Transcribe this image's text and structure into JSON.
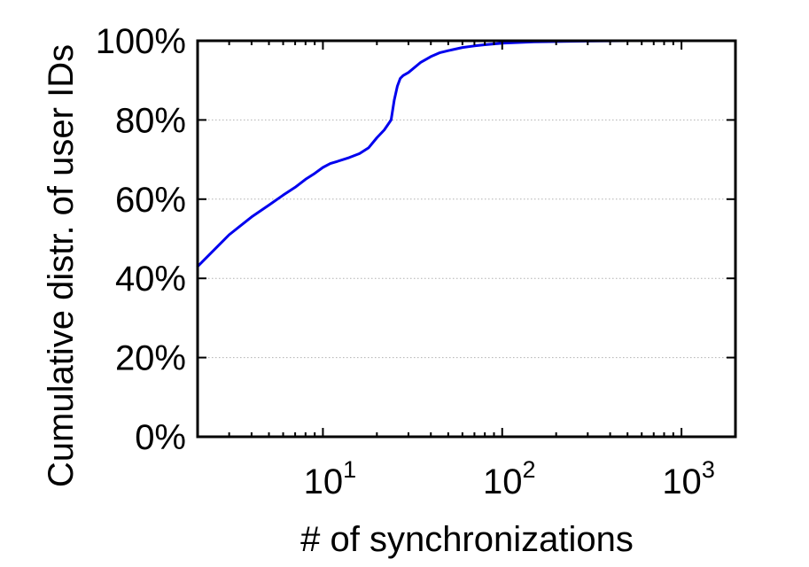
{
  "chart_data": {
    "type": "line",
    "title": "",
    "xlabel": "# of synchronizations",
    "ylabel": "Cumulative distr. of user IDs",
    "xscale": "log10",
    "xlim": [
      2,
      2000
    ],
    "ylim": [
      0,
      100
    ],
    "grid": {
      "y": true,
      "x": false,
      "style": "dotted"
    },
    "legend": "none",
    "x_ticks": [
      {
        "value": 10,
        "base": "10",
        "exp": "1"
      },
      {
        "value": 100,
        "base": "10",
        "exp": "2"
      },
      {
        "value": 1000,
        "base": "10",
        "exp": "3"
      }
    ],
    "y_ticks": [
      {
        "value": 0,
        "label": "0%"
      },
      {
        "value": 20,
        "label": "20%"
      },
      {
        "value": 40,
        "label": "40%"
      },
      {
        "value": 60,
        "label": "60%"
      },
      {
        "value": 80,
        "label": "80%"
      },
      {
        "value": 100,
        "label": "100%"
      }
    ],
    "series": [
      {
        "color": "#0000ee",
        "x": [
          2,
          3,
          4,
          5,
          6,
          7,
          8,
          9,
          10,
          11,
          12,
          14,
          16,
          18,
          20,
          22,
          24,
          25,
          26,
          27,
          28,
          30,
          35,
          40,
          45,
          50,
          60,
          70,
          80,
          100,
          150,
          200,
          300,
          500,
          1000,
          2000
        ],
        "y": [
          43,
          51,
          55.5,
          58.5,
          61,
          63,
          65,
          66.5,
          68,
          69,
          69.5,
          70.5,
          71.5,
          73,
          75.5,
          77.5,
          80,
          85,
          88.5,
          90.5,
          91.2,
          92,
          94.5,
          96,
          97,
          97.5,
          98.3,
          98.7,
          99,
          99.4,
          99.7,
          99.8,
          99.9,
          100,
          100,
          100
        ]
      }
    ]
  }
}
